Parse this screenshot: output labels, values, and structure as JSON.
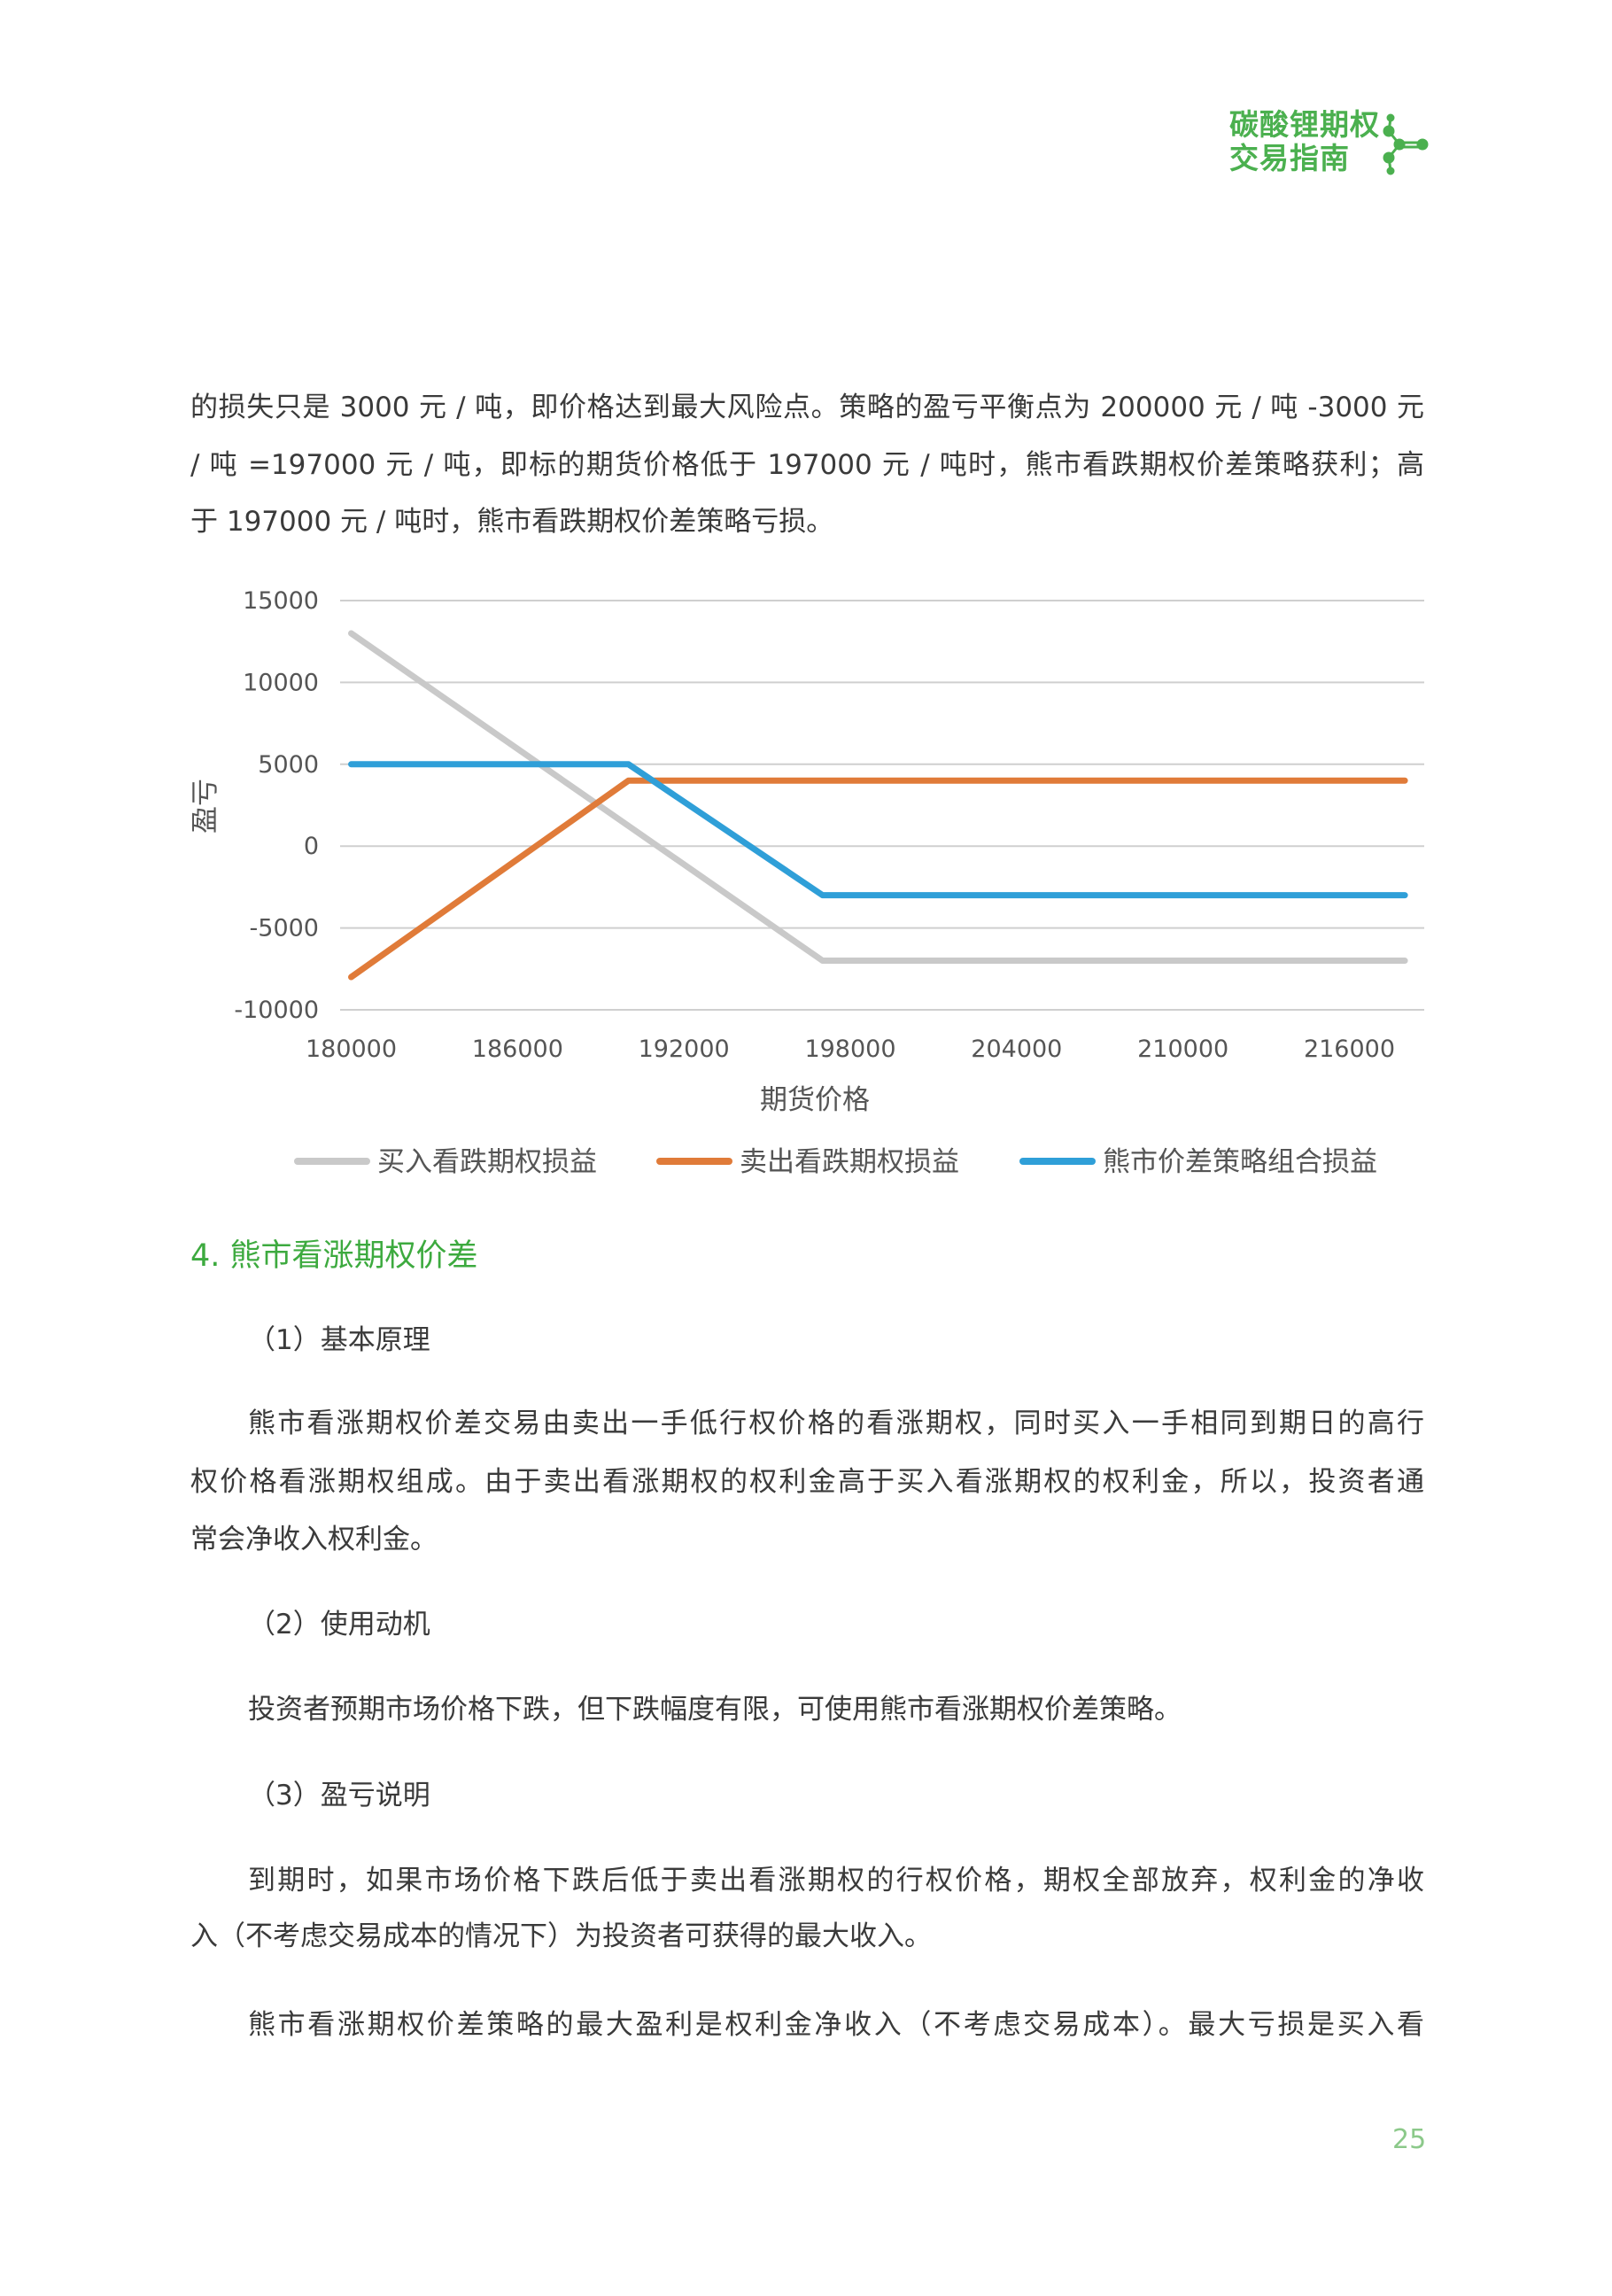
{
  "header": {
    "logo_lines": [
      "碳酸锂期权",
      "交易指南"
    ],
    "logo_icon": "molecule-icon",
    "accent_color": "#4bb04f"
  },
  "intro_paragraph": {
    "lines": [
      "的损失只是 3000 元 / 吨，即价格达到最大风险点。策略的盈亏平衡点为 200000 元 / 吨 -3000 元",
      "/ 吨 =197000 元 / 吨，即标的期货价格低于 197000 元 / 吨时，熊市看跌期权价差策略获利；高",
      "于 197000 元 / 吨时，熊市看跌期权价差策略亏损。"
    ]
  },
  "chart_data": {
    "type": "line",
    "title": "",
    "xlabel": "期货价格",
    "ylabel": "盈亏",
    "xlim": [
      179600,
      218700
    ],
    "ylim": [
      -10000,
      15000
    ],
    "x_ticks": [
      "180000",
      "186000",
      "192000",
      "198000",
      "204000",
      "210000",
      "216000"
    ],
    "y_ticks": [
      "15000",
      "10000",
      "5000",
      "0",
      "-5000",
      "-10000"
    ],
    "grid": true,
    "legend_position": "bottom",
    "series": [
      {
        "name": "买入看跌期权损益",
        "color": "#c9c9c9",
        "points": [
          [
            180000,
            13000
          ],
          [
            197000,
            -7000
          ],
          [
            218000,
            -7000
          ]
        ]
      },
      {
        "name": "卖出看跌期权损益",
        "color": "#e07b39",
        "points": [
          [
            180000,
            -8000
          ],
          [
            190000,
            4000
          ],
          [
            218000,
            4000
          ]
        ]
      },
      {
        "name": "熊市价差策略组合损益",
        "color": "#2f9fd8",
        "points": [
          [
            180000,
            5000
          ],
          [
            190000,
            5000
          ],
          [
            197000,
            -3000
          ],
          [
            218000,
            -3000
          ]
        ]
      }
    ]
  },
  "section": {
    "heading": "4. 熊市看涨期权价差",
    "sub1": "（1）基本原理",
    "para1": [
      "熊市看涨期权价差交易由卖出一手低行权价格的看涨期权，同时买入一手相同到期日的高行",
      "权价格看涨期权组成。由于卖出看涨期权的权利金高于买入看涨期权的权利金，所以，投资者通",
      "常会净收入权利金。"
    ],
    "sub2": "（2）使用动机",
    "para2": [
      "投资者预期市场价格下跌，但下跌幅度有限，可使用熊市看涨期权价差策略。"
    ],
    "sub3": "（3）盈亏说明",
    "para3": [
      "到期时，如果市场价格下跌后低于卖出看涨期权的行权价格，期权全部放弃，权利金的净收",
      "入（不考虑交易成本的情况下）为投资者可获得的最大收入。"
    ],
    "para4": [
      "熊市看涨期权价差策略的最大盈利是权利金净收入（不考虑交易成本）。最大亏损是买入看"
    ]
  },
  "footer": {
    "page_number": "25"
  }
}
